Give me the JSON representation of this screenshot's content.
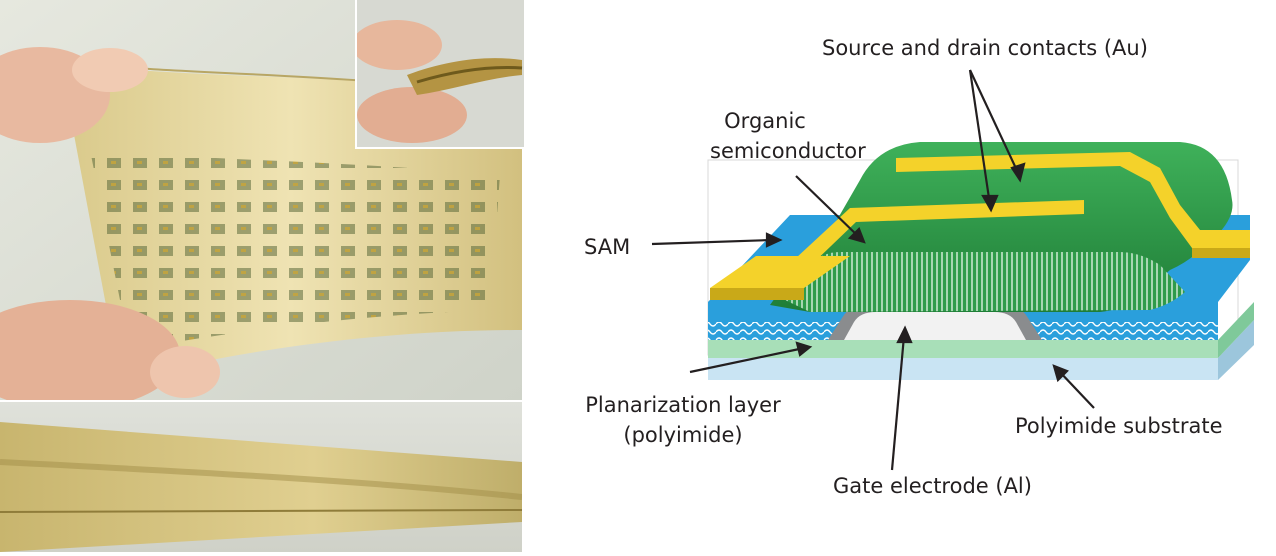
{
  "photos": {
    "main": "Flexible transistor sheet bent between fingers",
    "inset": "Sheet rolled between fingers",
    "bottom": "Sheet viewed edge-on"
  },
  "diagram_labels": {
    "source_drain": "Source and drain contacts (Au)",
    "organic_line1": "Organic",
    "organic_line2": "semiconductor",
    "sam": "SAM",
    "planarization_line1": "Planarization layer",
    "planarization_line2": "(polyimide)",
    "polyimide_substrate": "Polyimide substrate",
    "gate_electrode": "Gate electrode (Al)"
  },
  "colors": {
    "substrate": "#c9e4f3",
    "planarization": "#a8dfb8",
    "sam_blue": "#2a9fdc",
    "semiconductor_green": "#2f9b4a",
    "gold": "#f4d22a",
    "gate_gray": "#8a8c8e",
    "film_beige": "#d8cfa0"
  }
}
